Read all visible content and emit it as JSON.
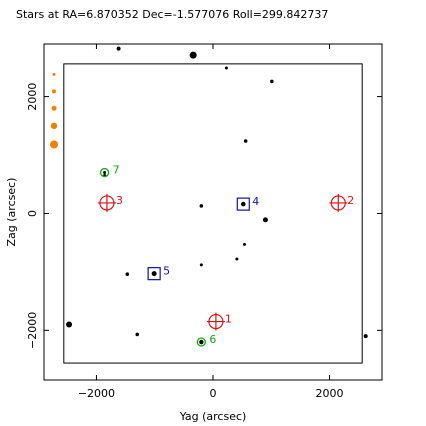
{
  "chart_data": {
    "type": "scatter",
    "title": "Stars at RA=6.870352 Dec=-1.577076 Roll=299.842737",
    "xlabel": "Yag (arcsec)",
    "ylabel": "Zag (arcsec)",
    "xlim": [
      -2900,
      2900
    ],
    "ylim": [
      -2850,
      2900
    ],
    "x_ticks": [
      -2000,
      0,
      2000
    ],
    "y_ticks": [
      -2000,
      0,
      2000
    ],
    "grid": false,
    "field_box": {
      "x": [
        -2560,
        2560
      ],
      "y": [
        -2560,
        2560
      ]
    },
    "stars": [
      {
        "y": -1620,
        "z": 2820,
        "size": 2
      },
      {
        "y": -340,
        "z": 2710,
        "size": 3.5
      },
      {
        "y": 230,
        "z": 2490,
        "size": 1.5
      },
      {
        "y": 1010,
        "z": 2260,
        "size": 1.8
      },
      {
        "y": 560,
        "z": 1240,
        "size": 1.8
      },
      {
        "y": -1860,
        "z": 650,
        "size": 1.5
      },
      {
        "y": -200,
        "z": 130,
        "size": 1.8
      },
      {
        "y": 520,
        "z": 160,
        "size": 2.3
      },
      {
        "y": 900,
        "z": -110,
        "size": 2.5
      },
      {
        "y": 540,
        "z": -530,
        "size": 1.5
      },
      {
        "y": 410,
        "z": -780,
        "size": 1.5
      },
      {
        "y": -200,
        "z": -880,
        "size": 1.5
      },
      {
        "y": -1470,
        "z": -1040,
        "size": 1.8
      },
      {
        "y": -1010,
        "z": -1030,
        "size": 2.5
      },
      {
        "y": -2470,
        "z": -1900,
        "size": 3
      },
      {
        "y": -1300,
        "z": -2070,
        "size": 1.8
      },
      {
        "y": -200,
        "z": -2200,
        "size": 2.2
      },
      {
        "y": 2620,
        "z": -2100,
        "size": 2
      }
    ],
    "guide_stars": [
      {
        "label": "1",
        "y": 50,
        "z": -1850
      },
      {
        "label": "2",
        "y": 2150,
        "z": 180
      },
      {
        "label": "3",
        "y": -1820,
        "z": 180
      }
    ],
    "acq_stars": [
      {
        "label": "4",
        "y": 520,
        "z": 160
      },
      {
        "label": "5",
        "y": -1010,
        "z": -1030
      }
    ],
    "fid_lights": [
      {
        "label": "6",
        "y": -200,
        "z": -2200
      },
      {
        "label": "7",
        "y": -1860,
        "z": 700
      }
    ],
    "magnitude_legend": [
      {
        "z": 2380,
        "size": 1.5
      },
      {
        "z": 2090,
        "size": 2
      },
      {
        "z": 1800,
        "size": 2.5
      },
      {
        "z": 1500,
        "size": 3.2
      },
      {
        "z": 1180,
        "size": 4
      }
    ],
    "colors": {
      "star": "#000000",
      "guide": "#dd1111",
      "acq": "#1111aa",
      "fid": "#11aa11",
      "legend": "#f08000"
    }
  }
}
